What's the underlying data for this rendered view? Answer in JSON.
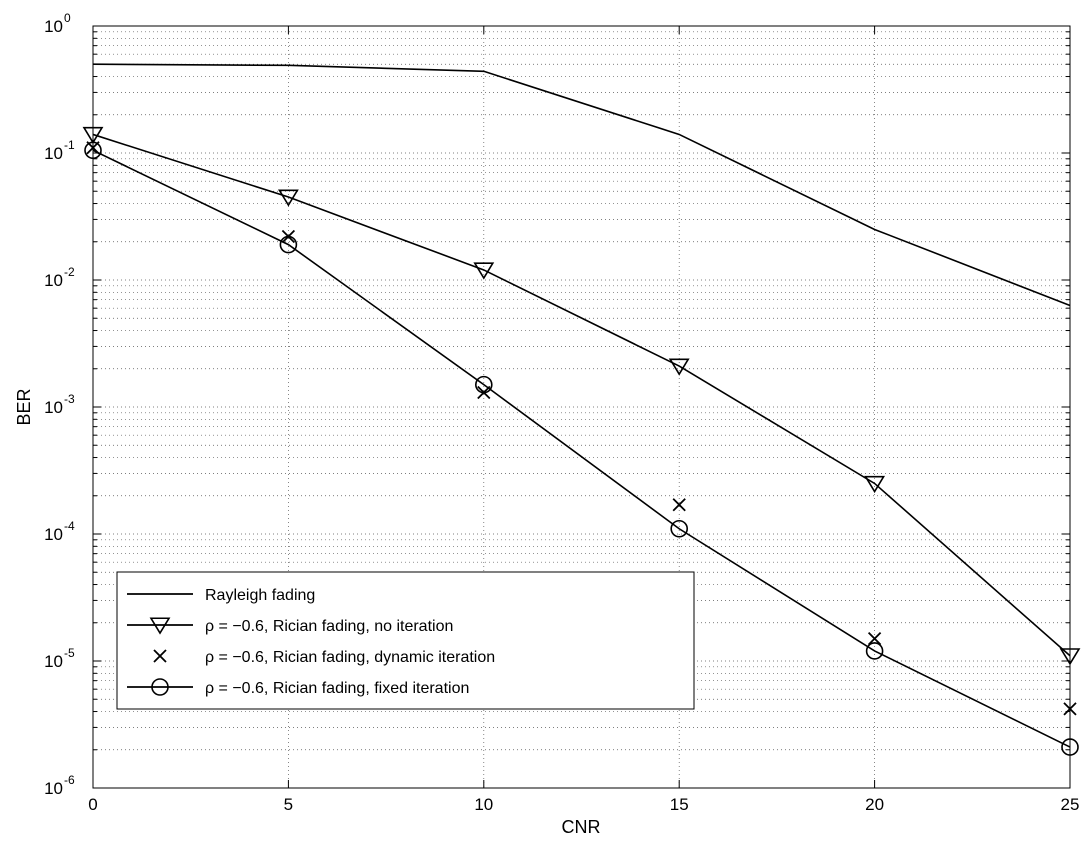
{
  "chart_data": {
    "type": "line",
    "title": "",
    "xlabel": "CNR",
    "ylabel": "BER",
    "xlim": [
      0,
      25
    ],
    "ylim": [
      1e-06,
      1
    ],
    "yscale": "log",
    "grid": true,
    "x_ticks": [
      0,
      5,
      10,
      15,
      20,
      25
    ],
    "y_ticks": [
      {
        "value": 1,
        "base": "10",
        "exp": "0"
      },
      {
        "value": 0.1,
        "base": "10",
        "exp": "-1"
      },
      {
        "value": 0.01,
        "base": "10",
        "exp": "-2"
      },
      {
        "value": 0.001,
        "base": "10",
        "exp": "-3"
      },
      {
        "value": 0.0001,
        "base": "10",
        "exp": "-4"
      },
      {
        "value": 1e-05,
        "base": "10",
        "exp": "-5"
      },
      {
        "value": 1e-06,
        "base": "10",
        "exp": "-6"
      }
    ],
    "legend_position": "bottom-left",
    "series": [
      {
        "name": "Rayleigh fading",
        "marker": "none",
        "color": "#000000",
        "x": [
          0,
          5,
          10,
          15,
          20,
          25
        ],
        "values": [
          0.5,
          0.49,
          0.44,
          0.14,
          0.025,
          0.0063
        ]
      },
      {
        "name": "ρ = −0.6, Rician fading, no iteration",
        "marker": "triangle-down",
        "color": "#000000",
        "x": [
          0,
          5,
          10,
          15,
          20,
          25
        ],
        "values": [
          0.14,
          0.045,
          0.012,
          0.0021,
          0.00025,
          1.1e-05
        ]
      },
      {
        "name": "ρ = −0.6, Rician fading, dynamic iteration",
        "marker": "x",
        "color": "#000000",
        "x": [
          0,
          5,
          10,
          15,
          20,
          25
        ],
        "values": [
          0.11,
          0.022,
          0.0013,
          0.00017,
          1.5e-05,
          4.2e-06
        ]
      },
      {
        "name": "ρ = −0.6, Rician fading, fixed iteration",
        "marker": "circle",
        "color": "#000000",
        "x": [
          0,
          5,
          10,
          15,
          20,
          25
        ],
        "values": [
          0.105,
          0.019,
          0.0015,
          0.00011,
          1.2e-05,
          2.1e-06
        ]
      }
    ]
  }
}
